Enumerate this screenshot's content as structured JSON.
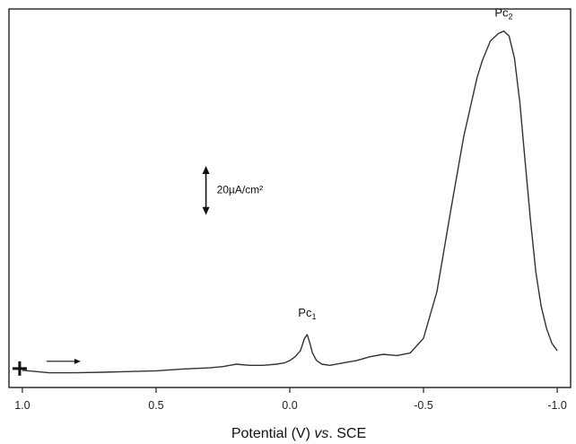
{
  "chart_data": {
    "type": "line",
    "xlabel": {
      "prefix": "Potential (V) ",
      "italic": "vs",
      "suffix": ". SCE"
    },
    "ylabel": "",
    "x_reversed": true,
    "xlim": [
      1.05,
      -1.05
    ],
    "xticks": [
      1.0,
      0.5,
      0.0,
      -0.5,
      -1.0
    ],
    "xtick_labels": [
      "1.0",
      "0.5",
      "0.0",
      "-0.5",
      "-1.0"
    ],
    "y_units": "µA/cm²",
    "ylim": [
      -6,
      148
    ],
    "grid": false,
    "legend": "none",
    "series": [
      {
        "x": [
          1.0,
          0.95,
          0.9,
          0.8,
          0.7,
          0.6,
          0.5,
          0.4,
          0.3,
          0.25,
          0.2,
          0.15,
          0.1,
          0.05,
          0.02,
          0.0,
          -0.02,
          -0.04,
          -0.055,
          -0.065,
          -0.075,
          -0.085,
          -0.1,
          -0.12,
          -0.15,
          -0.2,
          -0.25,
          -0.3,
          -0.35,
          -0.4,
          -0.45,
          -0.5,
          -0.55,
          -0.6,
          -0.65,
          -0.7,
          -0.72,
          -0.75,
          -0.78,
          -0.8,
          -0.82,
          -0.84,
          -0.86,
          -0.88,
          -0.9,
          -0.92,
          -0.94,
          -0.96,
          -0.98,
          -1.0
        ],
        "y": [
          1.0,
          0.5,
          0.0,
          0.0,
          0.2,
          0.5,
          0.8,
          1.5,
          2.0,
          2.5,
          3.5,
          3.0,
          3.0,
          3.5,
          4.0,
          5.0,
          6.5,
          9.0,
          14.0,
          15.5,
          12.0,
          8.0,
          5.0,
          3.5,
          3.0,
          4.0,
          5.0,
          6.5,
          7.5,
          7.0,
          8.0,
          14.0,
          33.0,
          65.0,
          96.0,
          120.0,
          127.0,
          135.0,
          138.0,
          139.0,
          137.0,
          128.0,
          110.0,
          86.0,
          62.0,
          41.0,
          27.0,
          18.0,
          12.0,
          9.0
        ]
      }
    ],
    "annotations": {
      "peak1": {
        "base": "Pc",
        "sub": "1",
        "x": -0.065,
        "y": 15.5
      },
      "peak2": {
        "base": "Pc",
        "sub": "2",
        "x": -0.8,
        "y": 139.0
      },
      "scale_bar": {
        "label": "20µA/cm²",
        "value": 20,
        "x": 0.3
      },
      "start_marker": {
        "symbol": "+",
        "x": 1.0
      },
      "scan_direction": "arrow-right"
    }
  }
}
